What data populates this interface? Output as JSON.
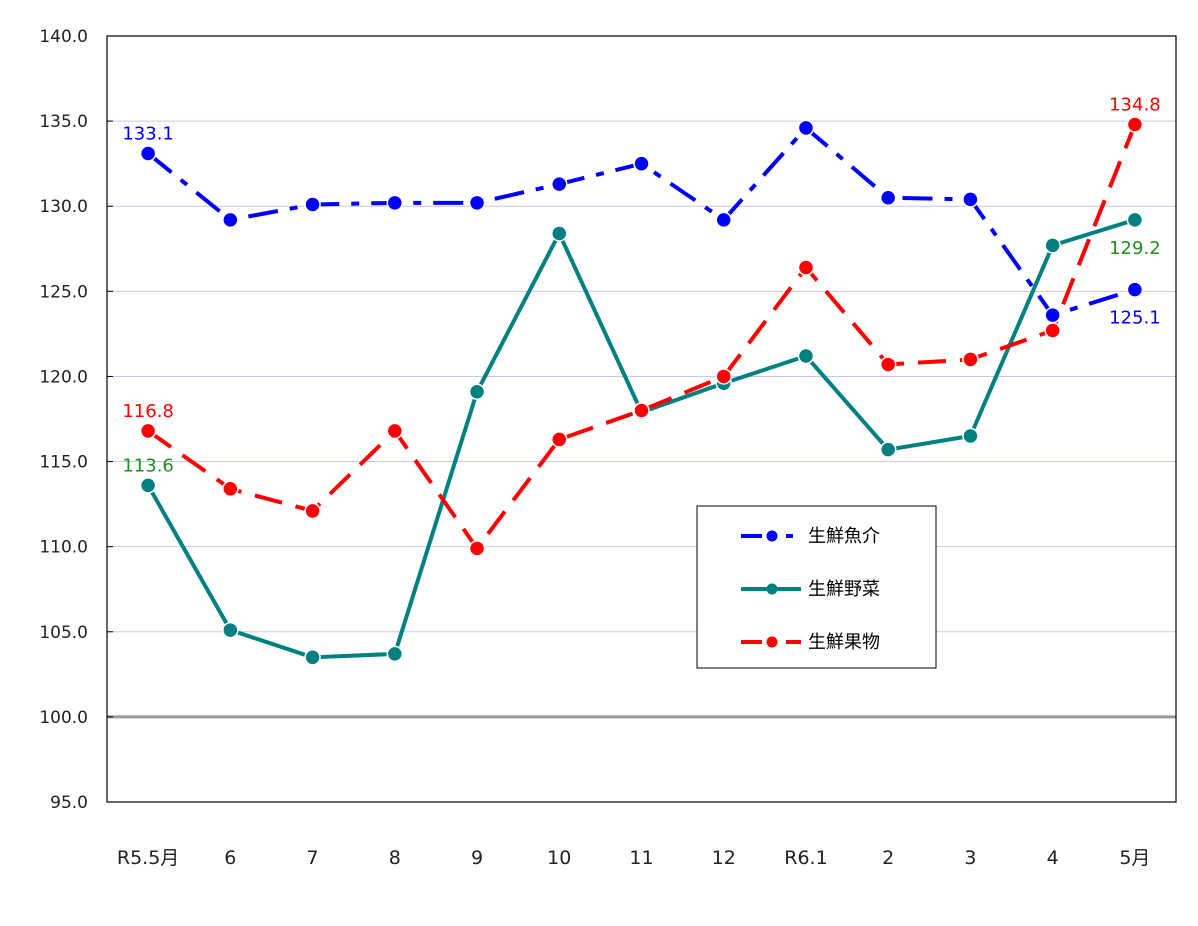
{
  "chart_data": {
    "type": "line",
    "title": "",
    "xlabel": "",
    "ylabel": "",
    "categories": [
      "R5.5月",
      "6",
      "7",
      "8",
      "9",
      "10",
      "11",
      "12",
      "R6.1",
      "2",
      "3",
      "4",
      "5月"
    ],
    "ylim": [
      95.0,
      140.0
    ],
    "yticks": [
      "140.0",
      "135.0",
      "130.0",
      "125.0",
      "120.0",
      "115.0",
      "110.0",
      "105.0",
      "100.0",
      "95.0"
    ],
    "grid": true,
    "reference_line": 100.0,
    "legend_position": "inside-center-right",
    "series": [
      {
        "name": "生鮮魚介",
        "color": "#0000FF",
        "style": "dash-dot",
        "values": [
          133.1,
          129.2,
          130.1,
          130.2,
          130.2,
          131.3,
          132.5,
          129.2,
          134.6,
          130.5,
          130.4,
          123.6,
          125.1
        ],
        "labels": [
          {
            "index": 0,
            "text": "133.1",
            "pos": "above"
          },
          {
            "index": 12,
            "text": "125.1",
            "pos": "below"
          }
        ]
      },
      {
        "name": "生鮮野菜",
        "color": "#008080",
        "style": "solid",
        "label_color": "#228B22",
        "values": [
          113.6,
          105.1,
          103.5,
          103.7,
          119.1,
          128.4,
          117.9,
          119.6,
          121.2,
          115.7,
          116.5,
          127.7,
          129.2
        ],
        "labels": [
          {
            "index": 0,
            "text": "113.6",
            "pos": "above"
          },
          {
            "index": 12,
            "text": "129.2",
            "pos": "below"
          }
        ]
      },
      {
        "name": "生鮮果物",
        "color": "#FF0000",
        "style": "dash",
        "values": [
          116.8,
          113.4,
          112.1,
          116.8,
          109.9,
          116.3,
          118.0,
          120.0,
          126.4,
          120.7,
          121.0,
          122.7,
          134.8
        ],
        "labels": [
          {
            "index": 0,
            "text": "116.8",
            "pos": "above"
          },
          {
            "index": 12,
            "text": "134.8",
            "pos": "above"
          }
        ]
      }
    ]
  },
  "legend": {
    "items": [
      {
        "label": "生鮮魚介"
      },
      {
        "label": "生鮮野菜"
      },
      {
        "label": "生鮮果物"
      }
    ]
  }
}
